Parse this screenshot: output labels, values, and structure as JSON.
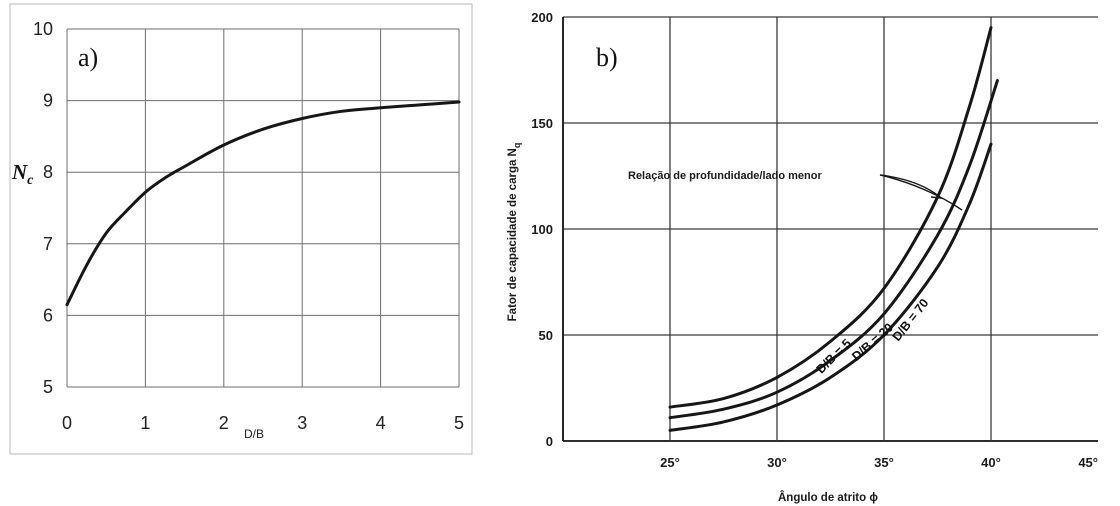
{
  "chart_data": [
    {
      "type": "line",
      "panel_label": "a)",
      "title": "",
      "xlabel": "D/B",
      "ylabel": "N_c",
      "ylabel_main": "N",
      "ylabel_sub": "c",
      "xlim": [
        0,
        5
      ],
      "ylim": [
        5,
        10
      ],
      "x_ticks": [
        "0",
        "1",
        "2",
        "3",
        "4",
        "5"
      ],
      "y_ticks": [
        "5",
        "6",
        "7",
        "8",
        "9",
        "10"
      ],
      "grid": true,
      "series": [
        {
          "x": [
            0,
            0.25,
            0.5,
            0.75,
            1.0,
            1.25,
            1.5,
            2.0,
            2.5,
            3.0,
            3.5,
            4.0,
            4.5,
            5.0
          ],
          "y": [
            6.15,
            6.7,
            7.15,
            7.45,
            7.72,
            7.92,
            8.08,
            8.38,
            8.6,
            8.75,
            8.85,
            8.9,
            8.94,
            8.98
          ]
        }
      ]
    },
    {
      "type": "line",
      "panel_label": "b)",
      "title": "",
      "xlabel": "Ângulo de atrito ϕ",
      "ylabel": "Fator de capacidade de carga N_q",
      "ylabel_main": "Fator de capacidade de carga N",
      "ylabel_sub": "q",
      "xlim": [
        20,
        45
      ],
      "ylim": [
        0,
        200
      ],
      "x_ticks": [
        "25°",
        "30°",
        "35°",
        "40°",
        "45°"
      ],
      "y_ticks": [
        "0",
        "50",
        "100",
        "150",
        "200"
      ],
      "grid": true,
      "annotation": "Relação de profundidade/lado menor",
      "series": [
        {
          "name": "D/B = 5",
          "x": [
            25,
            27.5,
            30,
            32.5,
            35,
            37.5,
            39,
            40
          ],
          "y": [
            16,
            20,
            30,
            47,
            72,
            115,
            158,
            195
          ]
        },
        {
          "name": "D/B = 20",
          "x": [
            25,
            27.5,
            30,
            32.5,
            35,
            37.5,
            39,
            40.3
          ],
          "y": [
            11,
            15,
            23,
            38,
            60,
            97,
            130,
            170
          ]
        },
        {
          "name": "D/B = 70",
          "x": [
            25,
            27.5,
            30,
            32.5,
            35,
            37.5,
            39,
            40
          ],
          "y": [
            5,
            9,
            17,
            30,
            50,
            82,
            112,
            140
          ]
        }
      ]
    }
  ]
}
